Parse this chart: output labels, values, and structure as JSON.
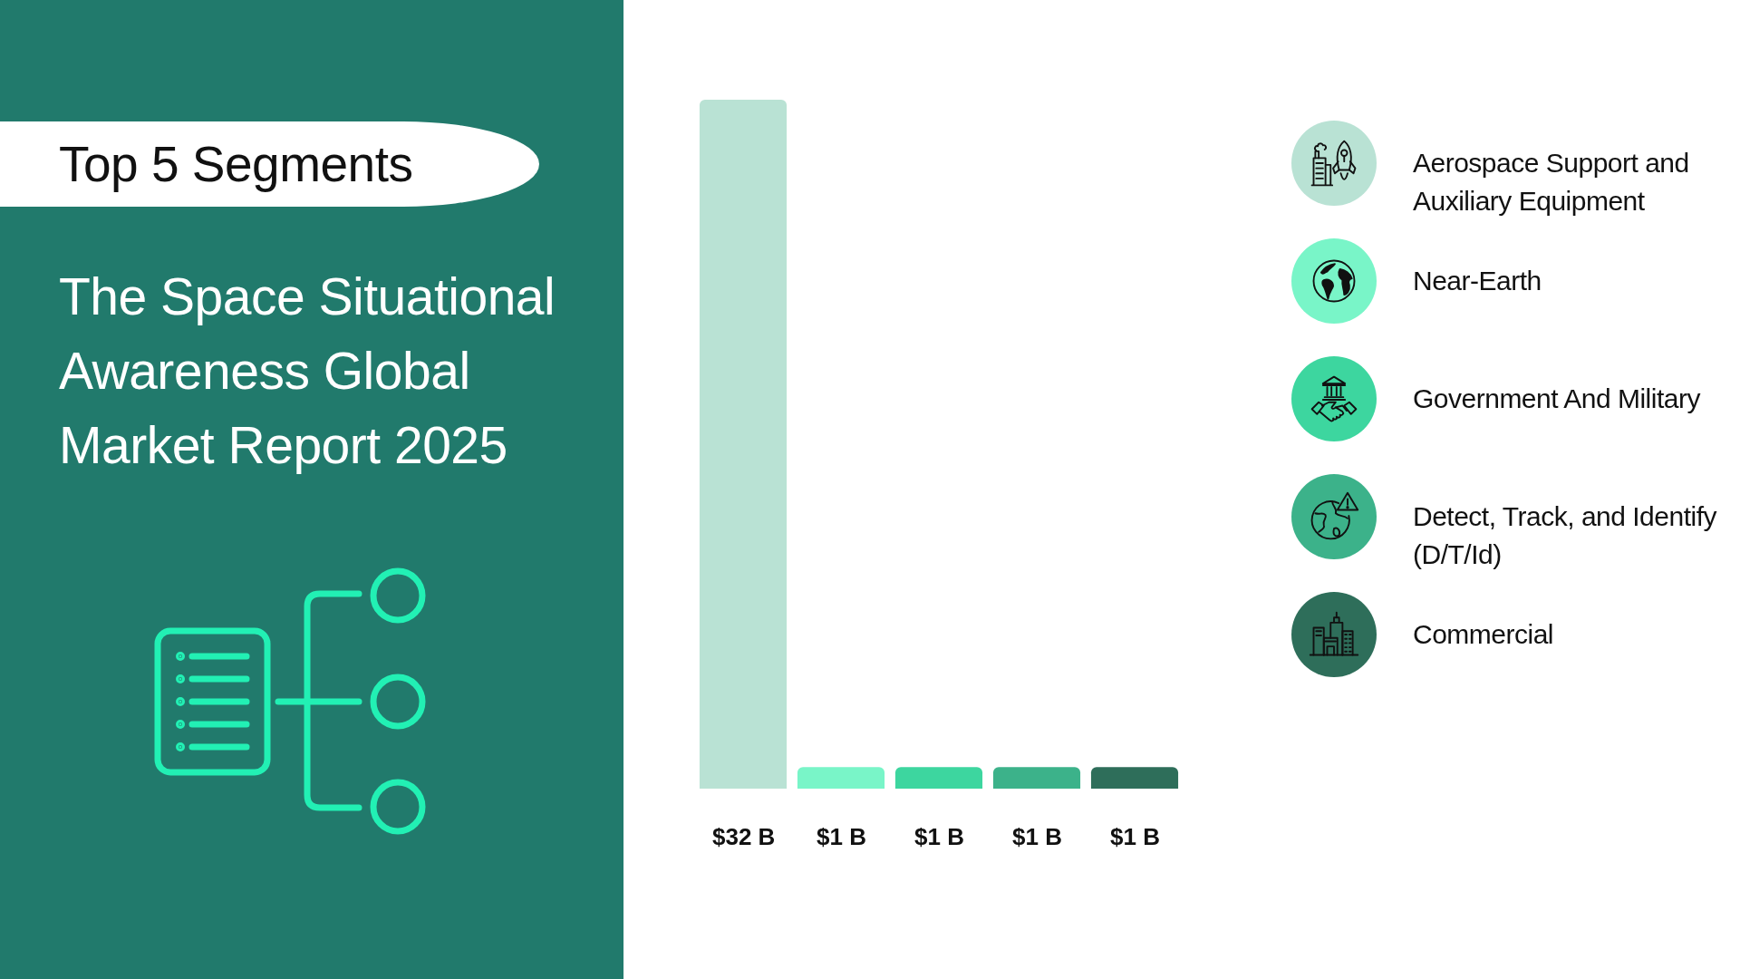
{
  "chart_data": {
    "type": "bar",
    "title": "Top 5 Segments",
    "subtitle": "The Space Situational Awareness Global Market Report 2025",
    "categories": [
      null
    ],
    "series": [
      {
        "name": "Aerospace Support and Auxiliary Equipment",
        "color": "#b9e2d4",
        "values": [
          32
        ],
        "value_labels": [
          "$32 B"
        ]
      },
      {
        "name": "Near-Earth",
        "color": "#79f5c8",
        "values": [
          1
        ],
        "value_labels": [
          "$1 B"
        ]
      },
      {
        "name": "Government And Military",
        "color": "#3dd69f",
        "values": [
          1
        ],
        "value_labels": [
          "$1 B"
        ]
      },
      {
        "name": "Detect, Track, and Identify (D/T/Id)",
        "color": "#3cb28a",
        "values": [
          1
        ],
        "value_labels": [
          "$1 B"
        ]
      },
      {
        "name": "Commercial",
        "color": "#2e6e5a",
        "values": [
          1
        ],
        "value_labels": [
          "$1 B"
        ]
      }
    ],
    "legend": "right"
  }
}
